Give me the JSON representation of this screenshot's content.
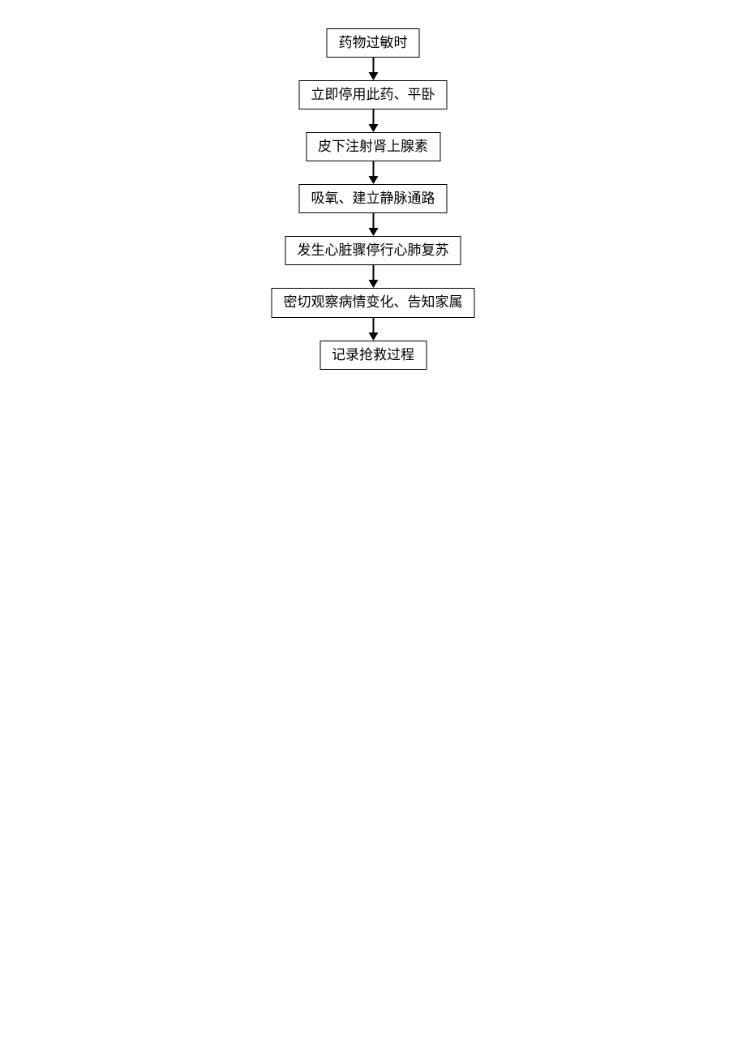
{
  "flowchart": {
    "type": "flowchart",
    "background_color": "#ffffff",
    "node_border_color": "#000000",
    "node_border_width": 1.5,
    "node_text_color": "#000000",
    "node_fontsize": 17,
    "arrow_color": "#000000",
    "arrow_line_width": 2,
    "arrow_length": 28,
    "nodes": [
      {
        "id": "n1",
        "label": "药物过敏时"
      },
      {
        "id": "n2",
        "label": "立即停用此药、平卧"
      },
      {
        "id": "n3",
        "label": "皮下注射肾上腺素"
      },
      {
        "id": "n4",
        "label": "吸氧、建立静脉通路"
      },
      {
        "id": "n5",
        "label": "发生心脏骤停行心肺复苏"
      },
      {
        "id": "n6",
        "label": "密切观察病情变化、告知家属"
      },
      {
        "id": "n7",
        "label": "记录抢救过程"
      }
    ],
    "edges": [
      {
        "from": "n1",
        "to": "n2"
      },
      {
        "from": "n2",
        "to": "n3"
      },
      {
        "from": "n3",
        "to": "n4"
      },
      {
        "from": "n4",
        "to": "n5"
      },
      {
        "from": "n5",
        "to": "n6"
      },
      {
        "from": "n6",
        "to": "n7"
      }
    ]
  }
}
